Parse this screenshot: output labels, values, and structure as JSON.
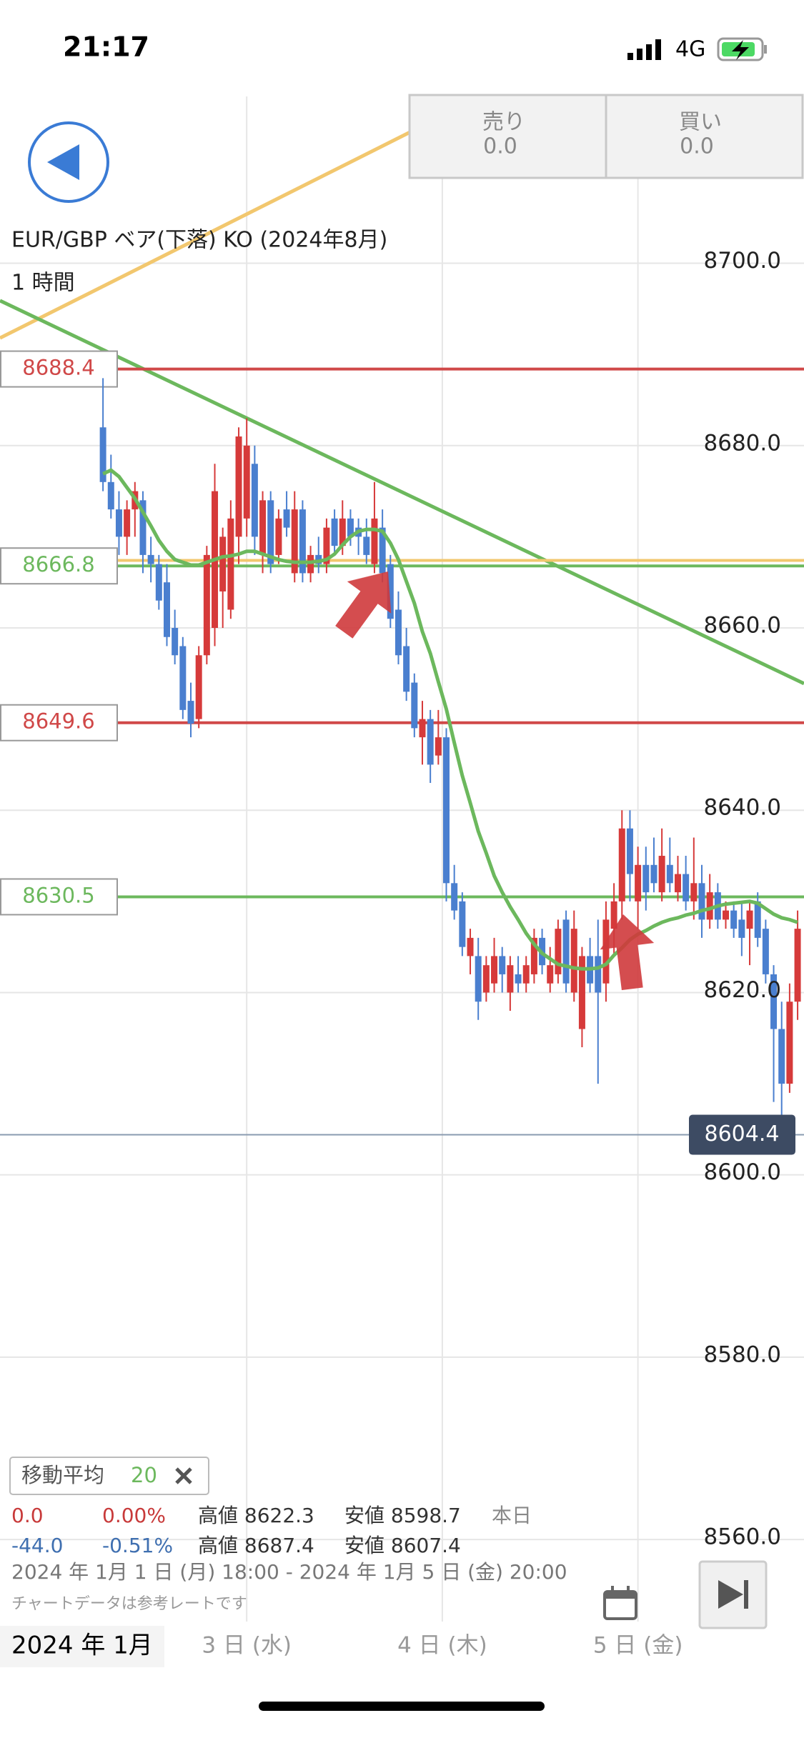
{
  "status_bar": {
    "time": "21:17",
    "network": "4G"
  },
  "trade_buttons": [
    {
      "label": "売り",
      "value": "0.0"
    },
    {
      "label": "買い",
      "value": "0.0"
    }
  ],
  "chart_data": {
    "type": "candlestick",
    "title": "EUR/GBP ベア(下落) KO (2024年8月)",
    "subtitle": "1 時間",
    "up_color": "#d63a3a",
    "down_color": "#4a7fcf",
    "ohlc": [
      [
        8682,
        8687.4,
        8675,
        8676
      ],
      [
        8676,
        8679,
        8672,
        8673
      ],
      [
        8673,
        8675,
        8668,
        8670
      ],
      [
        8670,
        8674,
        8668,
        8673
      ],
      [
        8673,
        8676,
        8670,
        8675
      ],
      [
        8674,
        8675,
        8666,
        8668
      ],
      [
        8668,
        8670,
        8665,
        8667
      ],
      [
        8667,
        8668,
        8662,
        8663
      ],
      [
        8665,
        8667,
        8658,
        8659
      ],
      [
        8660,
        8662,
        8656,
        8657
      ],
      [
        8658,
        8659,
        8650,
        8651
      ],
      [
        8652,
        8654,
        8648,
        8649.5
      ],
      [
        8650,
        8658,
        8649,
        8657
      ],
      [
        8657,
        8669,
        8656,
        8668
      ],
      [
        8660,
        8678,
        8658,
        8675
      ],
      [
        8664,
        8671,
        8660,
        8670
      ],
      [
        8662,
        8674,
        8661,
        8672
      ],
      [
        8670,
        8682,
        8667,
        8681
      ],
      [
        8672,
        8683,
        8670,
        8680
      ],
      [
        8678,
        8680,
        8668,
        8670
      ],
      [
        8668,
        8675,
        8666,
        8674
      ],
      [
        8674,
        8675,
        8666,
        8667
      ],
      [
        8668,
        8673,
        8667,
        8672
      ],
      [
        8673,
        8675,
        8670,
        8671
      ],
      [
        8666,
        8675,
        8665,
        8673
      ],
      [
        8673,
        8674,
        8665,
        8666
      ],
      [
        8666,
        8669,
        8665,
        8668
      ],
      [
        8668,
        8670,
        8666,
        8667
      ],
      [
        8667,
        8672,
        8666,
        8671
      ],
      [
        8672,
        8673,
        8668,
        8669
      ],
      [
        8669,
        8674,
        8668,
        8672
      ],
      [
        8672,
        8673,
        8669,
        8670
      ],
      [
        8671,
        8672,
        8668,
        8670
      ],
      [
        8670,
        8672,
        8667,
        8668
      ],
      [
        8667,
        8676,
        8666,
        8672
      ],
      [
        8671,
        8673,
        8665,
        8666
      ],
      [
        8667,
        8668,
        8660,
        8661
      ],
      [
        8662,
        8664,
        8656,
        8657
      ],
      [
        8658,
        8660,
        8652,
        8653
      ],
      [
        8654,
        8655,
        8648,
        8649
      ],
      [
        8648,
        8652,
        8645,
        8650
      ],
      [
        8650,
        8651,
        8643,
        8645
      ],
      [
        8646,
        8651,
        8645,
        8648
      ],
      [
        8648,
        8649,
        8630,
        8632
      ],
      [
        8632,
        8634,
        8628,
        8629
      ],
      [
        8630,
        8631,
        8624,
        8625
      ],
      [
        8624,
        8627,
        8622,
        8626
      ],
      [
        8624,
        8626,
        8617,
        8619
      ],
      [
        8620,
        8624,
        8619,
        8623
      ],
      [
        8621,
        8626,
        8620,
        8624
      ],
      [
        8624,
        8625,
        8620,
        8622
      ],
      [
        8620,
        8624,
        8618,
        8623
      ],
      [
        8622,
        8624,
        8620,
        8621
      ],
      [
        8621,
        8624,
        8620,
        8623
      ],
      [
        8622,
        8627,
        8621,
        8626
      ],
      [
        8626,
        8627,
        8622,
        8623
      ],
      [
        8621,
        8625,
        8620,
        8623
      ],
      [
        8622,
        8628,
        8621,
        8627
      ],
      [
        8628,
        8629,
        8620,
        8621
      ],
      [
        8620,
        8629,
        8619,
        8627
      ],
      [
        8616,
        8625,
        8614,
        8624
      ],
      [
        8624,
        8626,
        8620,
        8621
      ],
      [
        8624,
        8628,
        8610,
        8620
      ],
      [
        8621,
        8630,
        8619,
        8628
      ],
      [
        8627,
        8632,
        8624,
        8630
      ],
      [
        8630,
        8640,
        8628,
        8638
      ],
      [
        8638,
        8640,
        8630,
        8633
      ],
      [
        8630,
        8636,
        8627,
        8634
      ],
      [
        8634,
        8636,
        8629,
        8631
      ],
      [
        8634,
        8637,
        8631,
        8632
      ],
      [
        8631,
        8638,
        8630,
        8635
      ],
      [
        8634,
        8637,
        8631,
        8632
      ],
      [
        8631,
        8635,
        8630,
        8633
      ],
      [
        8633,
        8635,
        8629,
        8630
      ],
      [
        8630,
        8637,
        8628,
        8632
      ],
      [
        8632,
        8634,
        8626,
        8628
      ],
      [
        8628,
        8633,
        8627,
        8631
      ],
      [
        8631,
        8632,
        8627,
        8628
      ],
      [
        8628,
        8630,
        8627,
        8629
      ],
      [
        8629,
        8630,
        8626,
        8627
      ],
      [
        8628,
        8630,
        8624,
        8626
      ],
      [
        8627,
        8630,
        8623,
        8629
      ],
      [
        8630,
        8631,
        8625,
        8626
      ],
      [
        8627,
        8628,
        8621,
        8622
      ],
      [
        8622,
        8623,
        8608,
        8616
      ],
      [
        8616,
        8619,
        8606,
        8610
      ],
      [
        8610,
        8621,
        8609,
        8619
      ],
      [
        8619,
        8629,
        8617,
        8627
      ]
    ],
    "moving_average": {
      "label": "移動平均",
      "period": 20,
      "color": "#6cb85d",
      "values": [
        8676.9,
        8677.3,
        8676.6,
        8675.4,
        8674.2,
        8672.7,
        8671.2,
        8669.6,
        8668.4,
        8667.5,
        8667.2,
        8666.9,
        8666.9,
        8667.2,
        8667.5,
        8667.8,
        8667.9,
        8668.1,
        8668.4,
        8668.4,
        8668.1,
        8667.8,
        8667.5,
        8667.3,
        8667.2,
        8667.2,
        8667.2,
        8667.3,
        8667.5,
        8668.1,
        8669.1,
        8670.0,
        8670.6,
        8670.8,
        8670.8,
        8670.6,
        8669.3,
        8667.5,
        8665.1,
        8662.7,
        8659.6,
        8657.2,
        8654.1,
        8651.1,
        8647.4,
        8643.8,
        8640.8,
        8637.7,
        8635.3,
        8632.8,
        8631.0,
        8629.4,
        8628.0,
        8626.5,
        8625.3,
        8624.3,
        8623.7,
        8623.1,
        8622.9,
        8622.7,
        8622.6,
        8622.6,
        8622.7,
        8623.1,
        8624.1,
        8624.9,
        8625.8,
        8626.4,
        8626.8,
        8627.3,
        8627.7,
        8628.0,
        8628.2,
        8628.5,
        8628.7,
        8629.0,
        8629.2,
        8629.5,
        8629.7,
        8629.8,
        8629.9,
        8630.0,
        8629.8,
        8629.2,
        8628.6,
        8628.2,
        8628.0,
        8627.7
      ]
    },
    "levels": [
      {
        "value": 8688.4,
        "color": "#d04848",
        "boxed": true
      },
      {
        "value": 8667.4,
        "color": "#f2c76e",
        "boxed": false
      },
      {
        "value": 8666.8,
        "color": "#6cb85d",
        "boxed": true
      },
      {
        "value": 8649.6,
        "color": "#d04848",
        "boxed": true
      },
      {
        "value": 8630.5,
        "color": "#6cb85d",
        "boxed": true
      }
    ],
    "current_price": {
      "value": 8604.4,
      "color": "#8a9bb0"
    },
    "trendlines": [
      {
        "color": "#f2c76e",
        "points": [
          [
            -12.9,
            8691.8
          ],
          [
            38.5,
            8714.4
          ]
        ]
      },
      {
        "color": "#6cb85d",
        "points": [
          [
            -12.9,
            8695.9
          ],
          [
            87.8,
            8653.9
          ]
        ]
      }
    ],
    "xlim": [
      -12.9,
      87.8
    ],
    "ylim": [
      8551,
      8718.3
    ],
    "yticks": [
      {
        "value": 8560,
        "label": "8560.0"
      },
      {
        "value": 8580,
        "label": "8580.0"
      },
      {
        "value": 8600,
        "label": "8600.0"
      },
      {
        "value": 8620,
        "label": "8620.0"
      },
      {
        "value": 8640,
        "label": "8640.0"
      },
      {
        "value": 8660,
        "label": "8660.0"
      },
      {
        "value": 8680,
        "label": "8680.0"
      },
      {
        "value": 8700,
        "label": "8700.0"
      }
    ],
    "xticks": [
      {
        "value": 18,
        "label": "3 日 (水)"
      },
      {
        "value": 42.5,
        "label": "4 日 (木)"
      },
      {
        "value": 67,
        "label": "5 日 (金)"
      }
    ],
    "x_period_label": "2024 年 1月",
    "grid": true
  },
  "stats": {
    "rows": [
      [
        "0.0",
        "0.00%",
        "高値 8622.3",
        "安値 8598.7",
        "本日"
      ],
      [
        "-44.0",
        "-0.51%",
        "高値 8687.4",
        "安値 8607.4"
      ]
    ],
    "range": "2024 年 1月 1 日 (月) 18:00 - 2024 年 1月 5 日 (金) 20:00",
    "note": "チャートデータは参考レートです"
  }
}
